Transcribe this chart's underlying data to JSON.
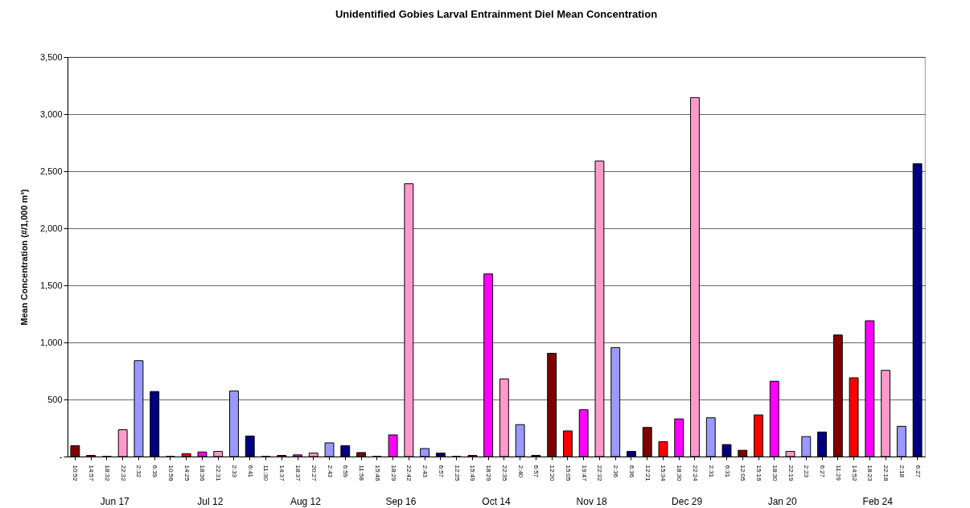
{
  "chart_data": {
    "type": "bar",
    "title": "Unidentified Gobies Larval Entrainment Diel Mean Concentration",
    "ylabel": "Mean Concentration (#/1,000 m³)",
    "categories": [
      "10:52",
      "14:57",
      "18:32",
      "22:32",
      "2:32",
      "6:39",
      "10:56",
      "14:25",
      "18:36",
      "22:31",
      "2:33",
      "6:41",
      "11:30",
      "14:37",
      "18:37",
      "20:27",
      "2:43",
      "6:59",
      "11:58",
      "15:46",
      "18:29",
      "22:42",
      "2:43",
      "6:57",
      "12:25",
      "15:49",
      "18:29",
      "22:35",
      "2:40",
      "6:57",
      "12:20",
      "15:05",
      "19:47",
      "22:32",
      "2:36",
      "6:36",
      "12:21",
      "15:34",
      "18:30",
      "22:24",
      "2:31",
      "6:31",
      "12:05",
      "15:16",
      "18:30",
      "22:19",
      "2:23",
      "6:27",
      "11:29",
      "14:52",
      "18:23",
      "22:18",
      "2:18",
      "6:27"
    ],
    "values": [
      95,
      10,
      0,
      235,
      840,
      570,
      0,
      25,
      40,
      45,
      575,
      180,
      0,
      10,
      15,
      30,
      120,
      95,
      35,
      0,
      190,
      2390,
      70,
      30,
      0,
      10,
      1600,
      680,
      280,
      10,
      905,
      225,
      410,
      2590,
      955,
      45,
      255,
      130,
      330,
      3145,
      340,
      105,
      55,
      365,
      660,
      45,
      175,
      215,
      1065,
      690,
      1190,
      755,
      265,
      2565
    ],
    "colors": [
      "#800000",
      "#ff0000",
      "#ff00ff",
      "#ff99cc",
      "#9999ff",
      "#000080",
      "#800000",
      "#ff0000",
      "#ff00ff",
      "#ff99cc",
      "#9999ff",
      "#000080",
      "#800000",
      "#ff0000",
      "#ff00ff",
      "#ff99cc",
      "#9999ff",
      "#000080",
      "#800000",
      "#ff0000",
      "#ff00ff",
      "#ff99cc",
      "#9999ff",
      "#000080",
      "#800000",
      "#ff0000",
      "#ff00ff",
      "#ff99cc",
      "#9999ff",
      "#000080",
      "#800000",
      "#ff0000",
      "#ff00ff",
      "#ff99cc",
      "#9999ff",
      "#000080",
      "#800000",
      "#ff0000",
      "#ff00ff",
      "#ff99cc",
      "#9999ff",
      "#000080",
      "#800000",
      "#ff0000",
      "#ff00ff",
      "#ff99cc",
      "#9999ff",
      "#000080",
      "#800000",
      "#ff0000",
      "#ff00ff",
      "#ff99cc",
      "#9999ff",
      "#000080"
    ],
    "annotations": [
      "Jun 17",
      "Jul 12",
      "Aug 12",
      "Sep 16",
      "Oct 14",
      "Nov 18",
      "Dec 29",
      "Jan 20",
      "Feb 24"
    ],
    "ylim": [
      0,
      3500
    ],
    "yticks": [
      {
        "value": 0,
        "label": "-"
      },
      {
        "value": 500,
        "label": "500"
      },
      {
        "value": 1000,
        "label": "1,000"
      },
      {
        "value": 1500,
        "label": "1,500"
      },
      {
        "value": 2000,
        "label": "2,000"
      },
      {
        "value": 2500,
        "label": "2,500"
      },
      {
        "value": 3000,
        "label": "3,000"
      },
      {
        "value": 3500,
        "label": "3,500"
      }
    ],
    "grid": "y"
  }
}
